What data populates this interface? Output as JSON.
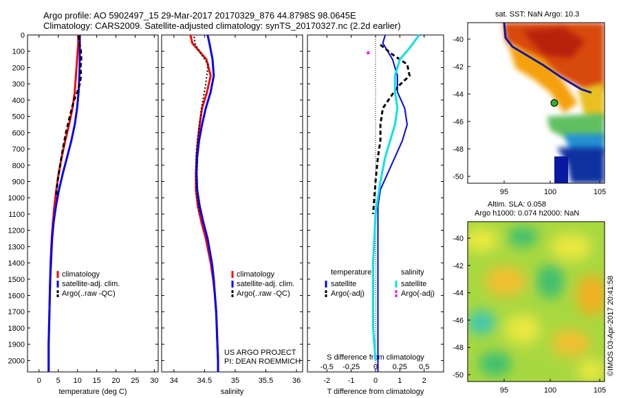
{
  "header": {
    "line1": "Argo profile: AO 5902497_15 29-Mar-2017 20170329_876 44.8798S 98.0645E",
    "line2": "Climatology: CARS2009. Satellite-adjusted climatology: synTS_20170327.nc (2.2d earlier)"
  },
  "depth_ticks": [
    "0",
    "100",
    "200",
    "300",
    "400",
    "500",
    "600",
    "700",
    "800",
    "900",
    "1000",
    "1100",
    "1200",
    "1300",
    "1400",
    "1500",
    "1600",
    "1700",
    "1800",
    "1900",
    "2000"
  ],
  "colors": {
    "climatology": "#ff0000",
    "satellite": "#0000ff",
    "argo": "#000000",
    "sat_salinity": "#00e5e5",
    "argo_adj_salinity": "#ff00ff"
  },
  "project_note": {
    "line1": "US ARGO PROJECT",
    "line2": "PI: DEAN ROEMMICH"
  },
  "sst_panel": {
    "title": "sat. SST: NaN Argo: 10.3",
    "lat_ticks": [
      "-40",
      "-42",
      "-44",
      "-46",
      "-48",
      "-50"
    ],
    "lon_ticks": [
      "95",
      "100",
      "105"
    ]
  },
  "sla_panel": {
    "title1": "Altim. SLA: 0.058",
    "title2": "Argo h1000: 0.074 h2000: NaN",
    "lat_ticks": [
      "-40",
      "-42",
      "-44",
      "-46",
      "-48",
      "-50"
    ],
    "lon_ticks": [
      "95",
      "100",
      "105"
    ]
  },
  "credit": "©IMOS 03-Apr-2017 20:41:58",
  "chart_data": [
    {
      "type": "line",
      "xlabel": "temperature (deg C)",
      "ylabel": "",
      "xlim": [
        -3,
        31
      ],
      "ylim": [
        0,
        2070
      ],
      "x_ticks": [
        "0",
        "5",
        "10",
        "15",
        "20",
        "25",
        "30"
      ],
      "legend": [
        "climatology",
        "satellite-adj. clim.",
        "Argo(..raw -QC)"
      ],
      "series": [
        {
          "name": "climatology",
          "x": [
            10.2,
            10.2,
            9.9,
            9.6,
            9.3,
            8.7,
            7.8,
            6.8,
            5.9,
            5.1,
            4.5,
            4.0,
            3.6,
            3.3,
            3.0,
            2.9,
            2.8,
            2.7,
            2.6,
            2.5,
            2.5,
            2.5
          ],
          "y": [
            0,
            50,
            150,
            250,
            350,
            450,
            550,
            650,
            750,
            850,
            950,
            1050,
            1150,
            1250,
            1400,
            1500,
            1600,
            1700,
            1800,
            1900,
            2000,
            2070
          ]
        },
        {
          "name": "satellite-adj. clim.",
          "x": [
            10.6,
            10.6,
            10.6,
            10.5,
            10.3,
            9.9,
            9.3,
            8.4,
            7.3,
            6.2,
            5.2,
            4.4,
            3.8,
            3.4,
            3.1,
            2.9,
            2.8,
            2.7,
            2.6,
            2.5,
            2.5,
            2.5
          ],
          "y": [
            0,
            50,
            150,
            250,
            350,
            450,
            550,
            650,
            750,
            850,
            950,
            1050,
            1150,
            1250,
            1400,
            1500,
            1600,
            1700,
            1800,
            1900,
            2000,
            2070
          ]
        },
        {
          "name": "Argo(..raw -QC)",
          "x": [
            10.4,
            10.5,
            10.9,
            11.0,
            10.8,
            10.9,
            10.6,
            10.0,
            9.1,
            8.0,
            7.0,
            6.2,
            5.5,
            4.8,
            4.4
          ],
          "y": [
            5,
            50,
            100,
            150,
            200,
            250,
            300,
            350,
            400,
            500,
            600,
            700,
            800,
            900,
            1000
          ]
        }
      ]
    },
    {
      "type": "line",
      "xlabel": "salinity",
      "ylabel": "",
      "xlim": [
        33.8,
        36.1
      ],
      "ylim": [
        0,
        2070
      ],
      "x_ticks": [
        "34",
        "34.5",
        "35",
        "35.5",
        "36"
      ],
      "legend": [
        "climatology",
        "satellite-adj. clim.",
        "Argo(..raw -QC)"
      ],
      "series": [
        {
          "name": "climatology",
          "x": [
            34.27,
            34.3,
            34.53,
            34.6,
            34.54,
            34.46,
            34.42,
            34.39,
            34.37,
            34.36,
            34.36,
            34.39,
            34.45,
            34.52,
            34.6,
            34.64,
            34.67,
            34.69,
            34.7,
            34.71,
            34.72,
            34.72
          ],
          "y": [
            0,
            50,
            150,
            250,
            350,
            450,
            550,
            650,
            750,
            850,
            950,
            1050,
            1150,
            1250,
            1400,
            1500,
            1600,
            1700,
            1800,
            1900,
            2000,
            2070
          ]
        },
        {
          "name": "satellite-adj. clim.",
          "x": [
            34.55,
            34.58,
            34.63,
            34.65,
            34.6,
            34.52,
            34.46,
            34.41,
            34.38,
            34.37,
            34.38,
            34.42,
            34.48,
            34.55,
            34.62,
            34.65,
            34.67,
            34.69,
            34.7,
            34.71,
            34.72,
            34.72
          ],
          "y": [
            0,
            50,
            150,
            250,
            350,
            450,
            550,
            650,
            750,
            850,
            950,
            1050,
            1150,
            1250,
            1400,
            1500,
            1600,
            1700,
            1800,
            1900,
            2000,
            2070
          ]
        },
        {
          "name": "Argo(..raw -QC)",
          "x": [
            34.33,
            34.35,
            34.45,
            34.56,
            34.52,
            34.45,
            34.4,
            34.37,
            34.36,
            34.36,
            34.38,
            34.42
          ],
          "y": [
            10,
            60,
            120,
            180,
            300,
            450,
            600,
            700,
            800,
            900,
            1000,
            1100
          ]
        }
      ]
    },
    {
      "type": "line",
      "xlabel": "T difference from climatology",
      "xlabel_top": "S difference from climatology",
      "ylabel": "",
      "xlim": [
        -2.8,
        2.8
      ],
      "ylim": [
        0,
        2070
      ],
      "x_ticks": [
        "-2",
        "-1",
        "0",
        "1",
        "2"
      ],
      "x_ticks_top": [
        "-0.5",
        "-0.25",
        "0",
        "0.25",
        "0.5"
      ],
      "legend_title_left": "temperature",
      "legend_title_right": "salinity",
      "legend": [
        "satellite",
        "Argo(-adj)",
        "satellite",
        "Argo(-adj)"
      ],
      "series": [
        {
          "name": "satellite",
          "x": [
            0.4,
            0.3,
            0.7,
            0.9,
            0.9,
            1.2,
            1.3,
            1.1,
            0.8,
            0.5,
            0.2,
            0.1,
            0.1,
            0.1,
            0.1,
            0.1,
            0.1,
            0.1,
            0.1
          ],
          "y": [
            0,
            50,
            150,
            250,
            350,
            450,
            550,
            650,
            750,
            850,
            950,
            1050,
            1150,
            1400,
            1600,
            1800,
            1900,
            2000,
            2070
          ]
        },
        {
          "name": "Argo(-adj)",
          "x": [
            0.2,
            0.7,
            1.3,
            1.4,
            0.9,
            0.3,
            0.2,
            0.2,
            0.1,
            0.0,
            -0.1
          ],
          "y": [
            60,
            120,
            180,
            250,
            320,
            450,
            550,
            650,
            750,
            900,
            1100
          ]
        },
        {
          "name": "satellite",
          "x": [
            1.8,
            1.4,
            1.0,
            0.8,
            0.8,
            0.9,
            0.8,
            0.6,
            0.4,
            0.2,
            0.0,
            -0.1,
            -0.1,
            -0.1,
            0.0
          ],
          "y": [
            0,
            80,
            150,
            250,
            350,
            450,
            550,
            650,
            750,
            900,
            1100,
            1400,
            1600,
            1800,
            2000
          ]
        },
        {
          "name": "Argo(-adj)",
          "x": [
            -0.3
          ],
          "y": [
            110
          ]
        }
      ]
    }
  ]
}
